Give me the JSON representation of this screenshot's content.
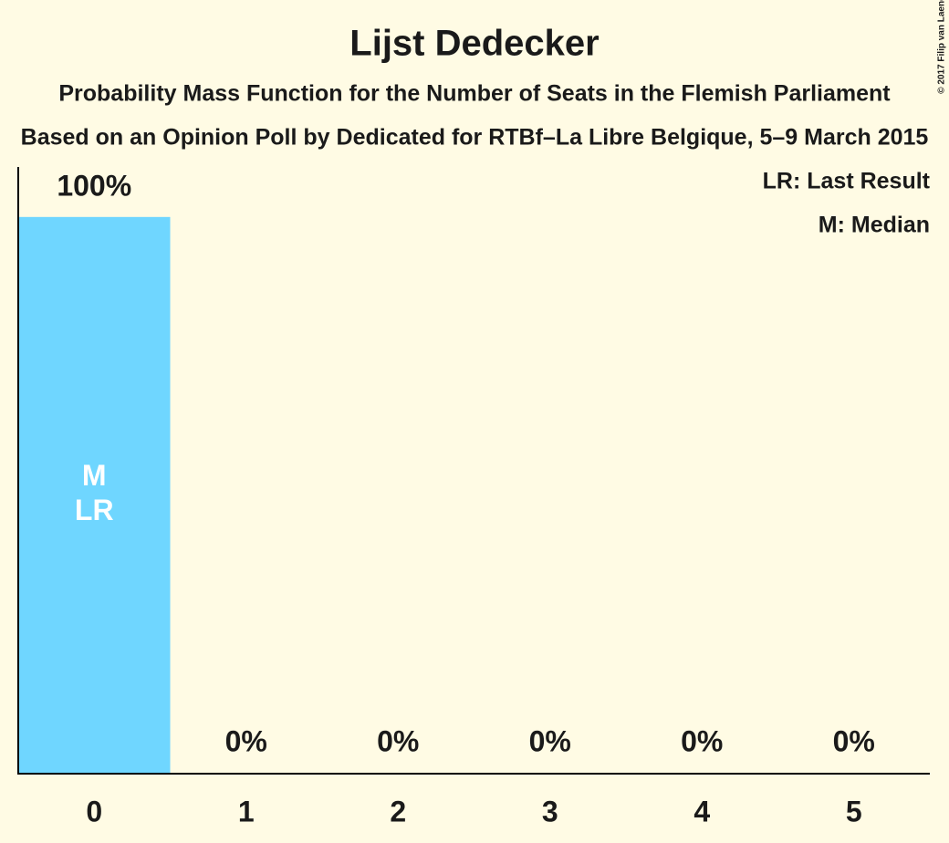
{
  "chart_data": {
    "type": "bar",
    "title": "Lijst Dedecker",
    "subtitle": "Probability Mass Function for the Number of Seats in the Flemish Parliament",
    "subtitle2": "Based on an Opinion Poll by Dedicated for RTBf–La Libre Belgique, 5–9 March 2015",
    "categories": [
      "0",
      "1",
      "2",
      "3",
      "4",
      "5"
    ],
    "values": [
      100,
      0,
      0,
      0,
      0,
      0
    ],
    "value_labels": [
      "100%",
      "0%",
      "0%",
      "0%",
      "0%",
      "0%"
    ],
    "color": "#6fd6ff",
    "ylim": [
      0,
      109
    ],
    "annotations": [
      {
        "category": "0",
        "lines": [
          "M",
          "LR"
        ]
      }
    ],
    "legend_notes": [
      "LR: Last Result",
      "M: Median"
    ],
    "credit": "© 2017 Filip van Laenen"
  }
}
